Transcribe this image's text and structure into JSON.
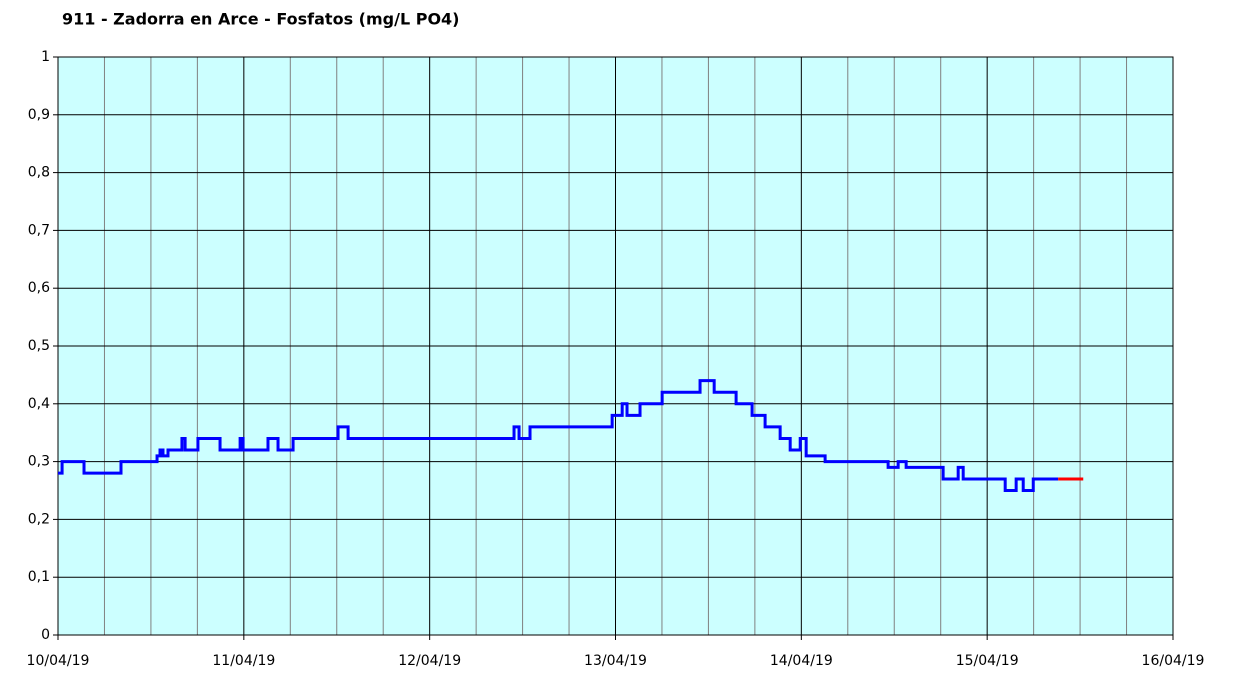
{
  "chart_data": {
    "type": "line",
    "drawstyle": "steps-post",
    "title": "911 - Zadorra en Arce - Fosfatos (mg/L PO4)",
    "series": [
      {
        "name": "blue",
        "color": "#0000ff",
        "x": [
          0,
          0.022,
          0.14,
          0.339,
          0.533,
          0.549,
          0.565,
          0.592,
          0.667,
          0.684,
          0.753,
          0.872,
          0.98,
          0.996,
          1.13,
          1.184,
          1.265,
          1.507,
          1.561,
          2.454,
          2.481,
          2.54,
          2.982,
          3.036,
          3.062,
          3.132,
          3.251,
          3.455,
          3.531,
          3.649,
          3.735,
          3.805,
          3.886,
          3.94,
          3.994,
          4.026,
          4.128,
          4.467,
          4.521,
          4.564,
          4.763,
          4.844,
          4.871,
          5.097,
          5.156,
          5.194,
          5.248,
          5.382
        ],
        "values": [
          0.28,
          0.3,
          0.28,
          0.3,
          0.31,
          0.32,
          0.31,
          0.32,
          0.34,
          0.32,
          0.34,
          0.32,
          0.34,
          0.32,
          0.34,
          0.32,
          0.34,
          0.36,
          0.34,
          0.36,
          0.34,
          0.36,
          0.38,
          0.4,
          0.38,
          0.4,
          0.42,
          0.44,
          0.42,
          0.4,
          0.38,
          0.36,
          0.34,
          0.32,
          0.34,
          0.31,
          0.3,
          0.29,
          0.3,
          0.29,
          0.27,
          0.29,
          0.27,
          0.25,
          0.27,
          0.25,
          0.27,
          0.27
        ]
      },
      {
        "name": "red",
        "color": "#ff0000",
        "x": [
          5.382,
          5.517
        ],
        "values": [
          0.27,
          0.27
        ]
      }
    ],
    "xlim": [
      0,
      6
    ],
    "xticks": [
      {
        "value": 0,
        "label": "10/04/19"
      },
      {
        "value": 1,
        "label": "11/04/19"
      },
      {
        "value": 2,
        "label": "12/04/19"
      },
      {
        "value": 3,
        "label": "13/04/19"
      },
      {
        "value": 4,
        "label": "14/04/19"
      },
      {
        "value": 5,
        "label": "15/04/19"
      },
      {
        "value": 6,
        "label": "16/04/19"
      }
    ],
    "x_minor_ticks": [
      0.25,
      0.5,
      0.75,
      1.25,
      1.5,
      1.75,
      2.25,
      2.5,
      2.75,
      3.25,
      3.5,
      3.75,
      4.25,
      4.5,
      4.75,
      5.25,
      5.5,
      5.75
    ],
    "ylim": [
      0,
      1
    ],
    "yticks": [
      0,
      {
        "value": 0.1,
        "label": "0,1"
      },
      {
        "value": 0.2,
        "label": "0,2"
      },
      {
        "value": 0.3,
        "label": "0,3"
      },
      {
        "value": 0.4,
        "label": "0,4"
      },
      {
        "value": 0.5,
        "label": "0,5"
      },
      {
        "value": 0.6,
        "label": "0,6"
      },
      {
        "value": 0.7,
        "label": "0,7"
      },
      {
        "value": 0.8,
        "label": "0,8"
      },
      {
        "value": 0.9,
        "label": "0,9"
      },
      1
    ],
    "grid": true,
    "background": "#ccffff"
  }
}
